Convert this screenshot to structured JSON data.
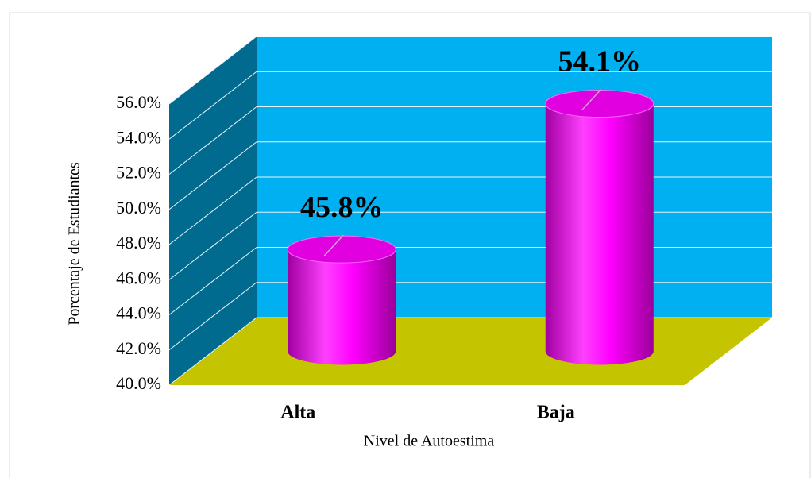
{
  "chart_data": {
    "type": "bar3d",
    "categories": [
      "Alta",
      "Baja"
    ],
    "values": [
      45.8,
      54.1
    ],
    "value_labels": [
      "45.8%",
      "54.1%"
    ],
    "color": "#ff00ff",
    "y_label": "Porcentaje de Estudiantes",
    "x_label": "Nivel de Autoestima",
    "ylim": [
      40,
      56
    ],
    "yticks": [
      {
        "value": 40,
        "label": "40.0%"
      },
      {
        "value": 42,
        "label": "42.0%"
      },
      {
        "value": 44,
        "label": "44.0%"
      },
      {
        "value": 46,
        "label": "46.0%"
      },
      {
        "value": 48,
        "label": "48.0%"
      },
      {
        "value": 50,
        "label": "50.0%"
      },
      {
        "value": 52,
        "label": "52.0%"
      },
      {
        "value": 54,
        "label": "54.0%"
      },
      {
        "value": 56,
        "label": "56.0%"
      }
    ],
    "grid": true
  }
}
